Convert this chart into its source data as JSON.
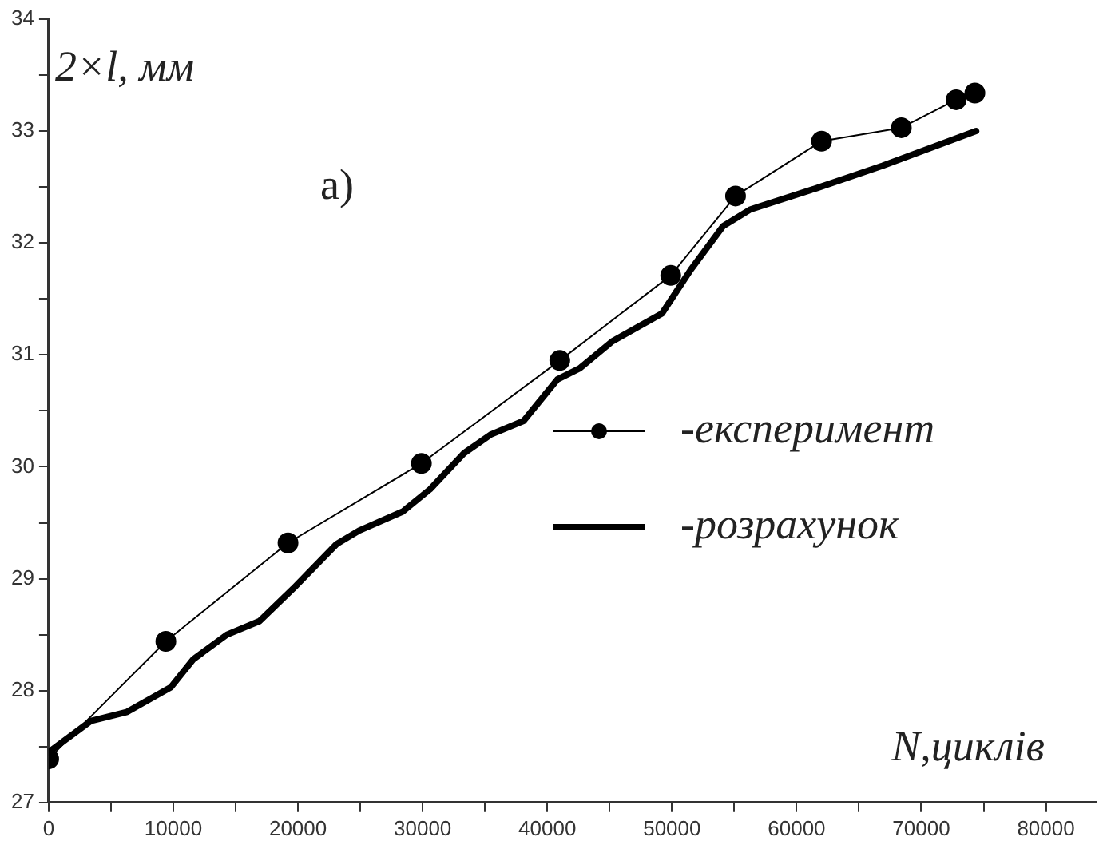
{
  "chart_data": {
    "type": "line",
    "xlabel": "N,циклів",
    "ylabel": "2×l, мм",
    "annotations": [
      "a)"
    ],
    "xlim": [
      0,
      84000
    ],
    "xticks": [
      0,
      {
        "value": 5000,
        "label": null
      },
      10000,
      {
        "value": 15000,
        "label": null
      },
      20000,
      {
        "value": 25000,
        "label": null
      },
      30000,
      {
        "value": 35000,
        "label": null
      },
      40000,
      {
        "value": 45000,
        "label": null
      },
      50000,
      {
        "value": 55000,
        "label": null
      },
      60000,
      {
        "value": 65000,
        "label": null
      },
      70000,
      {
        "value": 75000,
        "label": null
      },
      80000
    ],
    "ylim": [
      27,
      34
    ],
    "yticks": [
      27,
      {
        "value": 27.5,
        "label": null
      },
      28,
      {
        "value": 28.5,
        "label": null
      },
      29,
      {
        "value": 29.5,
        "label": null
      },
      30,
      {
        "value": 30.5,
        "label": null
      },
      31,
      {
        "value": 31.5,
        "label": null
      },
      32,
      {
        "value": 32.5,
        "label": null
      },
      33,
      {
        "value": 33.5,
        "label": null
      },
      34
    ],
    "grid": false,
    "legend": "right",
    "series": [
      {
        "name": "-експеримент",
        "color": "#000000",
        "marker": "circle",
        "x": [
          0,
          9400,
          19200,
          29900,
          41000,
          49900,
          55100,
          62000,
          68400,
          72800,
          74300
        ],
        "values": [
          27.39,
          28.44,
          29.32,
          30.03,
          30.95,
          31.71,
          32.42,
          32.91,
          33.03,
          33.28,
          33.34
        ]
      },
      {
        "name": "-розрахунок",
        "color": "#000000",
        "marker": "none",
        "x": [
          0,
          3400,
          6300,
          9800,
          11600,
          14300,
          16900,
          19600,
          23100,
          24900,
          28400,
          30600,
          33300,
          35500,
          38100,
          40800,
          42600,
          45200,
          49200,
          51500,
          54100,
          56300,
          61600,
          66900,
          74400
        ],
        "values": [
          27.45,
          27.73,
          27.81,
          28.03,
          28.28,
          28.5,
          28.62,
          28.91,
          29.31,
          29.43,
          29.6,
          29.8,
          30.12,
          30.29,
          30.41,
          30.78,
          30.88,
          31.12,
          31.37,
          31.76,
          32.15,
          32.3,
          32.49,
          32.69,
          33.0
        ]
      }
    ]
  }
}
